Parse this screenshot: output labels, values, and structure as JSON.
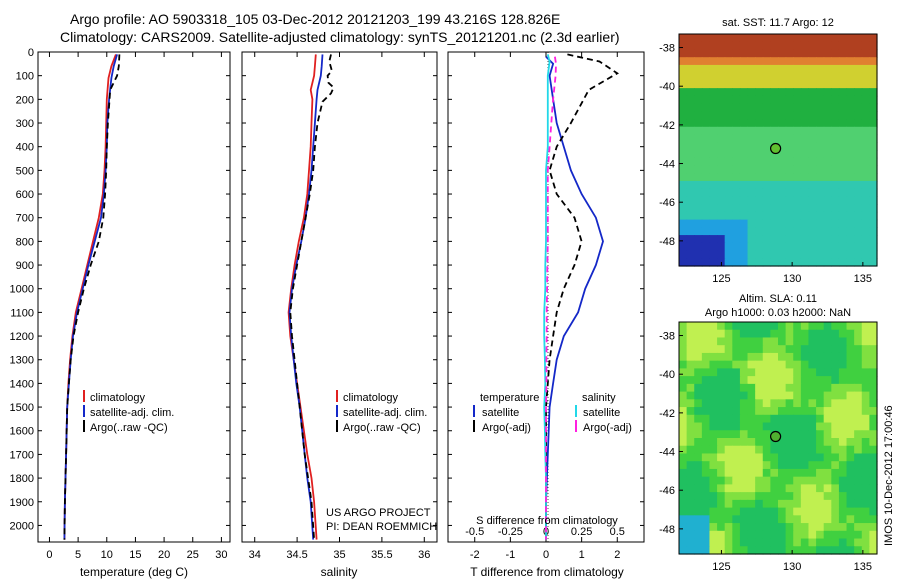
{
  "header": {
    "line1": "Argo profile: AO 5903318_105 03-Dec-2012 20121203_199 43.216S 128.826E",
    "line2": "Climatology: CARS2009. Satellite-adjusted climatology: synTS_20121201.nc (2.3d earlier)"
  },
  "colors": {
    "clim": "#e02020",
    "sat": "#1428c8",
    "argo": "#000000",
    "sat_s": "#22d8e8",
    "argo_s": "#ff20e0"
  },
  "chart_data": [
    {
      "type": "line",
      "xlabel": "temperature (deg C)",
      "ylabel": "",
      "xticks": [
        0,
        5,
        10,
        15,
        20,
        25,
        30
      ],
      "xlim": [
        -2,
        31.5
      ],
      "yticks": [
        0,
        100,
        200,
        300,
        400,
        500,
        600,
        700,
        800,
        900,
        1000,
        1100,
        1200,
        1300,
        1400,
        1500,
        1600,
        1700,
        1800,
        1900,
        2000
      ],
      "ylim": [
        2070,
        0
      ],
      "legend": [
        "climatology",
        "satellite-adj. clim.",
        "Argo(..raw -QC)"
      ],
      "series": [
        {
          "name": "climatology",
          "color_key": "clim",
          "dash": false,
          "points": [
            [
              11.6,
              10
            ],
            [
              10.8,
              60
            ],
            [
              10.3,
              110
            ],
            [
              10.0,
              200
            ],
            [
              9.9,
              300
            ],
            [
              9.8,
              400
            ],
            [
              9.6,
              500
            ],
            [
              9.3,
              600
            ],
            [
              8.6,
              700
            ],
            [
              7.6,
              800
            ],
            [
              6.6,
              900
            ],
            [
              5.6,
              1000
            ],
            [
              4.6,
              1100
            ],
            [
              4.0,
              1200
            ],
            [
              3.6,
              1300
            ],
            [
              3.3,
              1400
            ],
            [
              3.1,
              1500
            ],
            [
              2.9,
              1700
            ],
            [
              2.7,
              1900
            ],
            [
              2.6,
              2060
            ]
          ]
        },
        {
          "name": "satellite-adj. clim.",
          "color_key": "sat",
          "dash": false,
          "points": [
            [
              11.8,
              10
            ],
            [
              11.2,
              60
            ],
            [
              10.8,
              110
            ],
            [
              10.4,
              200
            ],
            [
              10.1,
              300
            ],
            [
              10.0,
              400
            ],
            [
              9.8,
              500
            ],
            [
              9.5,
              600
            ],
            [
              9.0,
              700
            ],
            [
              7.9,
              800
            ],
            [
              6.8,
              900
            ],
            [
              5.8,
              1000
            ],
            [
              4.8,
              1100
            ],
            [
              4.1,
              1200
            ],
            [
              3.7,
              1300
            ],
            [
              3.4,
              1400
            ],
            [
              3.1,
              1500
            ],
            [
              2.9,
              1700
            ],
            [
              2.7,
              1900
            ],
            [
              2.6,
              2060
            ]
          ]
        },
        {
          "name": "Argo(..raw -QC)",
          "color_key": "argo",
          "dash": true,
          "points": [
            [
              12.2,
              10
            ],
            [
              12.1,
              60
            ],
            [
              11.8,
              100
            ],
            [
              10.6,
              160
            ],
            [
              10.2,
              300
            ],
            [
              10.0,
              400
            ],
            [
              9.9,
              500
            ],
            [
              9.7,
              600
            ],
            [
              9.4,
              700
            ],
            [
              8.6,
              800
            ],
            [
              7.2,
              900
            ],
            [
              6.0,
              1000
            ],
            [
              5.0,
              1100
            ],
            [
              4.2,
              1200
            ],
            [
              3.7,
              1300
            ],
            [
              3.4,
              1400
            ],
            [
              3.1,
              1500
            ],
            [
              2.9,
              1700
            ],
            [
              2.7,
              1900
            ],
            [
              2.6,
              2060
            ]
          ]
        }
      ]
    },
    {
      "type": "line",
      "xlabel": "salinity",
      "ylabel": "",
      "xticks": [
        34,
        34.5,
        35,
        35.5,
        36
      ],
      "xlim": [
        33.85,
        36.15
      ],
      "ylim": [
        2070,
        0
      ],
      "legend": [
        "climatology",
        "satellite-adj. clim.",
        "Argo(..raw -QC)"
      ],
      "series": [
        {
          "name": "climatology",
          "color_key": "clim",
          "dash": false,
          "points": [
            [
              34.72,
              10
            ],
            [
              34.71,
              60
            ],
            [
              34.7,
              100
            ],
            [
              34.66,
              160
            ],
            [
              34.68,
              200
            ],
            [
              34.67,
              300
            ],
            [
              34.66,
              400
            ],
            [
              34.64,
              500
            ],
            [
              34.62,
              600
            ],
            [
              34.58,
              700
            ],
            [
              34.52,
              800
            ],
            [
              34.47,
              900
            ],
            [
              34.43,
              1000
            ],
            [
              34.4,
              1100
            ],
            [
              34.42,
              1200
            ],
            [
              34.46,
              1300
            ],
            [
              34.5,
              1400
            ],
            [
              34.54,
              1500
            ],
            [
              34.58,
              1600
            ],
            [
              34.62,
              1700
            ],
            [
              34.67,
              1800
            ],
            [
              34.7,
              1900
            ],
            [
              34.73,
              2060
            ]
          ]
        },
        {
          "name": "satellite-adj. clim.",
          "color_key": "sat",
          "dash": false,
          "points": [
            [
              34.8,
              10
            ],
            [
              34.79,
              60
            ],
            [
              34.78,
              100
            ],
            [
              34.74,
              160
            ],
            [
              34.73,
              200
            ],
            [
              34.71,
              300
            ],
            [
              34.69,
              400
            ],
            [
              34.67,
              500
            ],
            [
              34.64,
              600
            ],
            [
              34.6,
              700
            ],
            [
              34.55,
              800
            ],
            [
              34.49,
              900
            ],
            [
              34.44,
              1000
            ],
            [
              34.41,
              1100
            ],
            [
              34.43,
              1200
            ],
            [
              34.46,
              1300
            ],
            [
              34.49,
              1400
            ],
            [
              34.53,
              1500
            ],
            [
              34.56,
              1600
            ],
            [
              34.59,
              1700
            ],
            [
              34.62,
              1800
            ],
            [
              34.66,
              1900
            ],
            [
              34.69,
              2060
            ]
          ]
        },
        {
          "name": "Argo(..raw -QC)",
          "color_key": "argo",
          "dash": true,
          "points": [
            [
              34.9,
              10
            ],
            [
              34.88,
              40
            ],
            [
              34.91,
              80
            ],
            [
              34.86,
              100
            ],
            [
              34.87,
              130
            ],
            [
              34.93,
              150
            ],
            [
              34.9,
              175
            ],
            [
              34.8,
              210
            ],
            [
              34.74,
              300
            ],
            [
              34.71,
              400
            ],
            [
              34.69,
              500
            ],
            [
              34.65,
              600
            ],
            [
              34.6,
              700
            ],
            [
              34.55,
              800
            ],
            [
              34.5,
              900
            ],
            [
              34.45,
              1000
            ],
            [
              34.42,
              1100
            ],
            [
              34.44,
              1200
            ],
            [
              34.47,
              1300
            ],
            [
              34.5,
              1400
            ],
            [
              34.53,
              1500
            ],
            [
              34.56,
              1600
            ],
            [
              34.59,
              1700
            ],
            [
              34.63,
              1800
            ],
            [
              34.67,
              1900
            ],
            [
              34.7,
              2060
            ]
          ]
        }
      ]
    },
    {
      "type": "line",
      "xlabel": "T difference from climatology",
      "xlabel_top": "S difference from climatology",
      "xticks": [
        -2,
        -1,
        0,
        1,
        2
      ],
      "xticks_top": [
        "-0.5",
        "-0.25",
        "0",
        "0.25",
        "0.5"
      ],
      "xlim": [
        -2.75,
        2.75
      ],
      "ylim": [
        2070,
        0
      ],
      "legend_left_title": "temperature",
      "legend_right_title": "salinity",
      "legend_left": [
        "satellite",
        "Argo(-adj)"
      ],
      "legend_right": [
        "satellite",
        "Argo(-adj)"
      ],
      "series": [
        {
          "name": "satellite",
          "group": "temperature",
          "color_key": "sat",
          "dash": false,
          "points": [
            [
              0.0,
              20
            ],
            [
              0.2,
              50
            ],
            [
              0.1,
              100
            ],
            [
              0.2,
              200
            ],
            [
              0.3,
              300
            ],
            [
              0.5,
              400
            ],
            [
              0.7,
              500
            ],
            [
              1.0,
              600
            ],
            [
              1.4,
              700
            ],
            [
              1.6,
              800
            ],
            [
              1.4,
              900
            ],
            [
              1.1,
              1000
            ],
            [
              0.9,
              1100
            ],
            [
              0.5,
              1200
            ],
            [
              0.3,
              1300
            ],
            [
              0.2,
              1400
            ],
            [
              0.1,
              1500
            ],
            [
              0.05,
              1700
            ],
            [
              0.0,
              1900
            ],
            [
              0.0,
              2060
            ]
          ]
        },
        {
          "name": "Argo(-adj)",
          "group": "temperature",
          "color_key": "argo",
          "dash": true,
          "points": [
            [
              0.6,
              10
            ],
            [
              1.5,
              40
            ],
            [
              2.0,
              90
            ],
            [
              1.2,
              160
            ],
            [
              0.7,
              300
            ],
            [
              0.3,
              400
            ],
            [
              0.1,
              500
            ],
            [
              0.3,
              600
            ],
            [
              0.8,
              700
            ],
            [
              1.0,
              800
            ],
            [
              0.8,
              900
            ],
            [
              0.5,
              1000
            ],
            [
              0.3,
              1100
            ],
            [
              0.2,
              1200
            ],
            [
              0.1,
              1300
            ],
            [
              0.05,
              1400
            ],
            [
              0.0,
              1500
            ],
            [
              0.0,
              2060
            ]
          ]
        },
        {
          "name": "satellite",
          "group": "salinity",
          "color_key": "sat_s",
          "dash": false,
          "points": [
            [
              0.05,
              10
            ],
            [
              0.1,
              40
            ],
            [
              0.05,
              100
            ],
            [
              0.05,
              200
            ],
            [
              0.05,
              300
            ],
            [
              0.05,
              400
            ],
            [
              0.0,
              500
            ],
            [
              0.0,
              600
            ],
            [
              0.0,
              700
            ],
            [
              0.0,
              800
            ],
            [
              -0.02,
              900
            ],
            [
              -0.02,
              1000
            ],
            [
              -0.05,
              1100
            ],
            [
              -0.05,
              1200
            ],
            [
              -0.03,
              1300
            ],
            [
              -0.02,
              1400
            ],
            [
              -0.05,
              1500
            ],
            [
              -0.03,
              1600
            ],
            [
              -0.02,
              1700
            ],
            [
              0.0,
              1800
            ],
            [
              0.0,
              1900
            ],
            [
              0.0,
              2060
            ]
          ]
        },
        {
          "name": "Argo(-adj)",
          "group": "salinity",
          "color_key": "argo_s",
          "dash": true,
          "points": [
            [
              0.25,
              20
            ],
            [
              0.28,
              50
            ],
            [
              0.27,
              100
            ],
            [
              0.2,
              200
            ],
            [
              0.15,
              300
            ],
            [
              0.1,
              400
            ],
            [
              0.05,
              500
            ],
            [
              0.05,
              600
            ],
            [
              0.05,
              700
            ],
            [
              0.05,
              800
            ],
            [
              0.04,
              900
            ],
            [
              0.03,
              1000
            ],
            [
              0.02,
              1100
            ],
            [
              0.02,
              1200
            ],
            [
              0.01,
              1300
            ],
            [
              0.01,
              1400
            ],
            [
              0.0,
              1500
            ],
            [
              0.0,
              2060
            ]
          ]
        }
      ]
    },
    {
      "type": "heatmap",
      "title": "sat. SST: 11.7 Argo: 12",
      "xticks": [
        125,
        130,
        135
      ],
      "yticks": [
        -38,
        -40,
        -42,
        -44,
        -46,
        -48
      ],
      "xlim": [
        122,
        136
      ],
      "ylim": [
        -37.3,
        -49.3
      ],
      "marker": [
        128.83,
        -43.22
      ],
      "colors": [
        "#2030b0",
        "#20a0e0",
        "#30c8b0",
        "#50d070",
        "#20b040",
        "#d0d030",
        "#e08030",
        "#b04020"
      ]
    },
    {
      "type": "heatmap",
      "title_line1": "Altim. SLA: 0.11",
      "title_line2": "Argo h1000: 0.03 h2000: NaN",
      "xticks": [
        125,
        130,
        135
      ],
      "yticks": [
        -38,
        -40,
        -42,
        -44,
        -46,
        -48
      ],
      "xlim": [
        122,
        136
      ],
      "ylim": [
        -37.3,
        -49.3
      ],
      "marker": [
        128.83,
        -43.22
      ],
      "colors": [
        "#20b0d0",
        "#20c060",
        "#40d040",
        "#80e040",
        "#c0f050"
      ]
    }
  ],
  "credit": "IMOS 10-Dec-2012 17:00:46",
  "attribution_line1": "US ARGO PROJECT",
  "attribution_line2": "PI: DEAN ROEMMICH"
}
